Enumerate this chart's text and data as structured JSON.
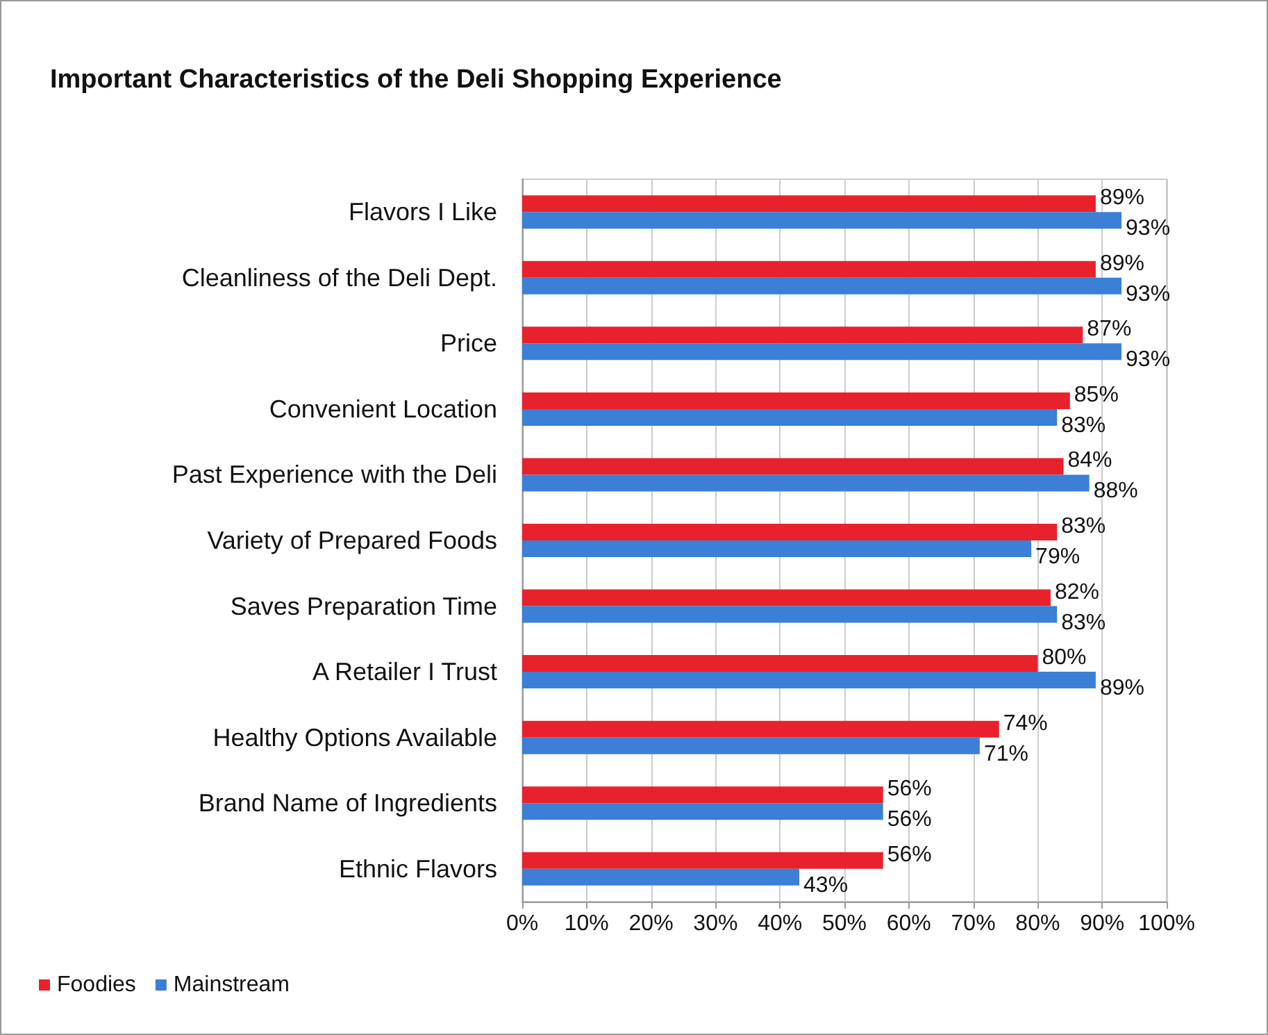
{
  "chart_data": {
    "type": "bar",
    "orientation": "horizontal",
    "title": "Important Characteristics of the Deli Shopping Experience",
    "categories": [
      "Flavors I Like",
      "Cleanliness of the Deli Dept.",
      "Price",
      "Convenient Location",
      "Past Experience with the Deli",
      "Variety of Prepared Foods",
      "Saves Preparation Time",
      "A Retailer I Trust",
      "Healthy Options Available",
      "Brand Name of Ingredients",
      "Ethnic Flavors"
    ],
    "series": [
      {
        "name": "Foodies",
        "color": "#e8222c",
        "values": [
          89,
          89,
          87,
          85,
          84,
          83,
          82,
          80,
          74,
          56,
          56
        ],
        "value_labels": [
          "89%",
          "89%",
          "87%",
          "85%",
          "84%",
          "83%",
          "82%",
          "80%",
          "74%",
          "56%",
          "56%"
        ]
      },
      {
        "name": "Mainstream",
        "color": "#3b7fd6",
        "values": [
          93,
          93,
          93,
          83,
          88,
          79,
          83,
          89,
          71,
          56,
          43
        ],
        "value_labels": [
          "93%",
          "93%",
          "93%",
          "83%",
          "88%",
          "79%",
          "83%",
          "89%",
          "71%",
          "56%",
          "43%"
        ]
      }
    ],
    "xlim": [
      0,
      100
    ],
    "xticks": [
      {
        "value": 0,
        "label": "0%"
      },
      {
        "value": 10,
        "label": "10%"
      },
      {
        "value": 20,
        "label": "20%"
      },
      {
        "value": 30,
        "label": "30%"
      },
      {
        "value": 40,
        "label": "40%"
      },
      {
        "value": 50,
        "label": "50%"
      },
      {
        "value": 60,
        "label": "60%"
      },
      {
        "value": 70,
        "label": "70%"
      },
      {
        "value": 80,
        "label": "80%"
      },
      {
        "value": 90,
        "label": "90%"
      },
      {
        "value": 100,
        "label": "100%"
      }
    ],
    "grid": "x",
    "legend": "bottom left"
  }
}
